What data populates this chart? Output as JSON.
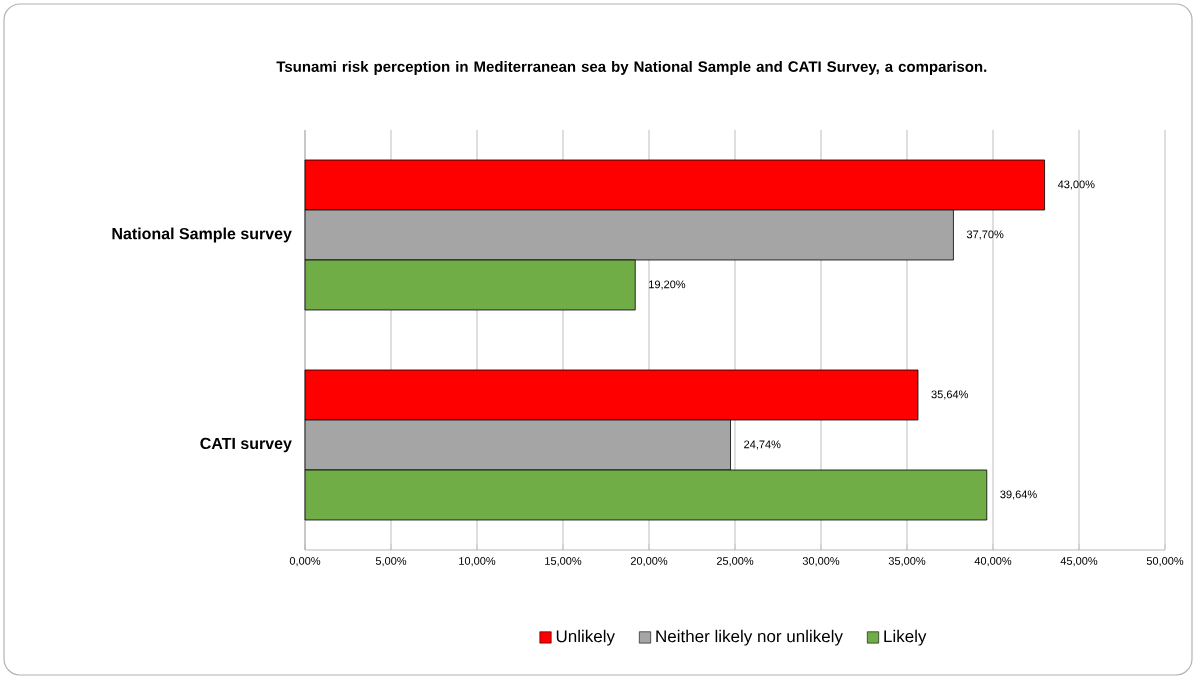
{
  "chart_data": {
    "type": "bar",
    "orientation": "horizontal",
    "title": "Tsunami risk perception in Mediterranean sea by National Sample and CATI Survey, a comparison.",
    "categories": [
      "National Sample survey",
      "CATI survey"
    ],
    "series": [
      {
        "name": "Unlikely",
        "color": "#ff0000",
        "values": [
          43.0,
          35.64
        ],
        "value_labels": [
          "43,00%",
          "35,64%"
        ]
      },
      {
        "name": "Neither likely nor unlikely",
        "color": "#a5a5a5",
        "values": [
          37.7,
          24.74
        ],
        "value_labels": [
          "37,70%",
          "24,74%"
        ]
      },
      {
        "name": "Likely",
        "color": "#70ad47",
        "values": [
          19.2,
          39.64
        ],
        "value_labels": [
          "19,20%",
          "39,64%"
        ]
      }
    ],
    "xlim": [
      0,
      50
    ],
    "xticks": [
      {
        "value": 0,
        "label": "0,00%"
      },
      {
        "value": 5,
        "label": "5,00%"
      },
      {
        "value": 10,
        "label": "10,00%"
      },
      {
        "value": 15,
        "label": "15,00%"
      },
      {
        "value": 20,
        "label": "20,00%"
      },
      {
        "value": 25,
        "label": "25,00%"
      },
      {
        "value": 30,
        "label": "30,00%"
      },
      {
        "value": 35,
        "label": "35,00%"
      },
      {
        "value": 40,
        "label": "40,00%"
      },
      {
        "value": 45,
        "label": "45,00%"
      },
      {
        "value": 50,
        "label": "50,00%"
      }
    ],
    "grid": "x",
    "legend": "bottom"
  }
}
